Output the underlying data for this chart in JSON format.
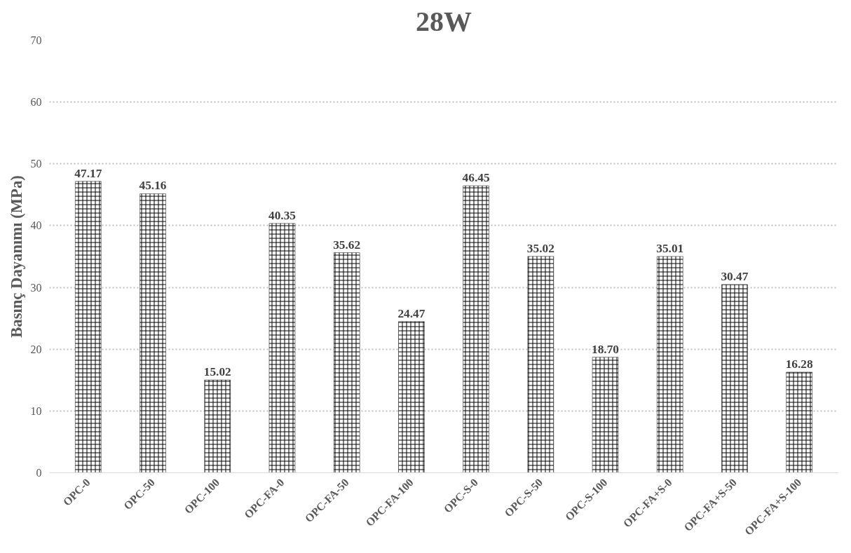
{
  "chart_data": {
    "type": "bar",
    "title": "28W",
    "ylabel": "Basınç Dayanımı (MPa)",
    "categories": [
      "OPC-0",
      "OPC-50",
      "OPC-100",
      "OPC-FA-0",
      "OPC-FA-50",
      "OPC-FA-100",
      "OPC-S-0",
      "OPC-S-50",
      "OPC-S-100",
      "OPC-FA+S-0",
      "OPC-FA+S-50",
      "OPC-FA+S-100"
    ],
    "values": [
      47.17,
      45.16,
      15.02,
      40.35,
      35.62,
      24.47,
      46.45,
      35.02,
      18.7,
      35.01,
      30.47,
      16.28
    ],
    "value_labels": [
      "47.17",
      "45.16",
      "15.02",
      "40.35",
      "35.62",
      "24.47",
      "46.45",
      "35.02",
      "18.70",
      "35.01",
      "30.47",
      "16.28"
    ],
    "color": "#000000",
    "ylim": [
      0,
      70
    ],
    "yticks": [
      0,
      10,
      20,
      30,
      40,
      50,
      60,
      70
    ],
    "grid": "y"
  }
}
